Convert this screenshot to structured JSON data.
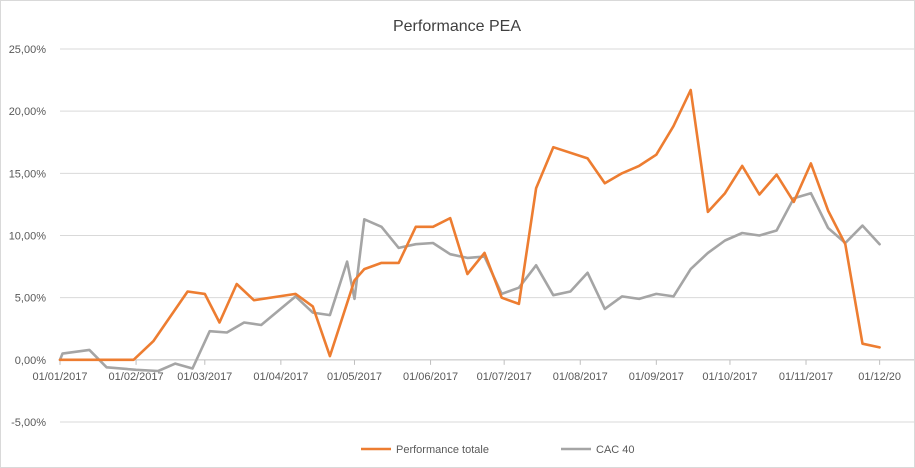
{
  "chart_data": {
    "type": "line",
    "title": "Performance PEA",
    "y_ticks": [
      "25,00%",
      "20,00%",
      "15,00%",
      "10,00%",
      "5,00%",
      "0,00%",
      "-5,00%"
    ],
    "y_tick_values": [
      25,
      20,
      15,
      10,
      5,
      0,
      -5
    ],
    "ylim": [
      -5,
      25
    ],
    "x_tick_labels": [
      "01/01/2017",
      "01/02/2017",
      "01/03/2017",
      "01/04/2017",
      "01/05/2017",
      "01/06/2017",
      "01/07/2017",
      "01/08/2017",
      "01/09/2017",
      "01/10/2017",
      "01/11/2017",
      "01/12/20"
    ],
    "x_tick_dates": [
      "2017-01-01",
      "2017-02-01",
      "2017-03-01",
      "2017-04-01",
      "2017-05-01",
      "2017-06-01",
      "2017-07-01",
      "2017-08-01",
      "2017-09-01",
      "2017-10-01",
      "2017-11-01",
      "2017-12-01"
    ],
    "xlim": [
      "2017-01-01",
      "2017-12-15"
    ],
    "grid": "horizontal",
    "legend_position": "bottom",
    "series": [
      {
        "name": "Performance totale",
        "color": "#ed7d31",
        "points": [
          [
            "2017-01-01",
            0.0
          ],
          [
            "2017-01-31",
            0.0
          ],
          [
            "2017-02-08",
            1.5
          ],
          [
            "2017-02-22",
            5.5
          ],
          [
            "2017-03-01",
            5.3
          ],
          [
            "2017-03-07",
            3.0
          ],
          [
            "2017-03-14",
            6.1
          ],
          [
            "2017-03-21",
            4.8
          ],
          [
            "2017-04-07",
            5.3
          ],
          [
            "2017-04-14",
            4.3
          ],
          [
            "2017-04-21",
            0.3
          ],
          [
            "2017-05-01",
            6.4
          ],
          [
            "2017-05-05",
            7.3
          ],
          [
            "2017-05-12",
            7.8
          ],
          [
            "2017-05-19",
            7.8
          ],
          [
            "2017-05-26",
            10.7
          ],
          [
            "2017-06-02",
            10.7
          ],
          [
            "2017-06-09",
            11.4
          ],
          [
            "2017-06-16",
            6.9
          ],
          [
            "2017-06-23",
            8.6
          ],
          [
            "2017-06-30",
            5.0
          ],
          [
            "2017-07-07",
            4.5
          ],
          [
            "2017-07-14",
            13.8
          ],
          [
            "2017-07-21",
            17.1
          ],
          [
            "2017-08-04",
            16.2
          ],
          [
            "2017-08-11",
            14.2
          ],
          [
            "2017-08-18",
            15.0
          ],
          [
            "2017-08-25",
            15.6
          ],
          [
            "2017-09-01",
            16.5
          ],
          [
            "2017-09-08",
            18.8
          ],
          [
            "2017-09-15",
            21.7
          ],
          [
            "2017-09-22",
            11.9
          ],
          [
            "2017-09-29",
            13.4
          ],
          [
            "2017-10-06",
            15.6
          ],
          [
            "2017-10-13",
            13.3
          ],
          [
            "2017-10-20",
            14.9
          ],
          [
            "2017-10-27",
            12.7
          ],
          [
            "2017-11-03",
            15.8
          ],
          [
            "2017-11-10",
            12.0
          ],
          [
            "2017-11-17",
            9.3
          ],
          [
            "2017-11-24",
            1.3
          ],
          [
            "2017-12-01",
            1.0
          ]
        ]
      },
      {
        "name": "CAC 40",
        "color": "#a5a5a5",
        "points": [
          [
            "2017-01-01",
            0.0
          ],
          [
            "2017-01-02",
            0.5
          ],
          [
            "2017-01-13",
            0.8
          ],
          [
            "2017-01-20",
            -0.6
          ],
          [
            "2017-02-01",
            -0.8
          ],
          [
            "2017-02-10",
            -0.9
          ],
          [
            "2017-02-17",
            -0.3
          ],
          [
            "2017-02-24",
            -0.7
          ],
          [
            "2017-03-03",
            2.3
          ],
          [
            "2017-03-10",
            2.2
          ],
          [
            "2017-03-17",
            3.0
          ],
          [
            "2017-03-24",
            2.8
          ],
          [
            "2017-04-07",
            5.1
          ],
          [
            "2017-04-14",
            3.8
          ],
          [
            "2017-04-21",
            3.6
          ],
          [
            "2017-04-28",
            7.9
          ],
          [
            "2017-05-01",
            4.9
          ],
          [
            "2017-05-05",
            11.3
          ],
          [
            "2017-05-12",
            10.7
          ],
          [
            "2017-05-19",
            9.0
          ],
          [
            "2017-05-26",
            9.3
          ],
          [
            "2017-06-02",
            9.4
          ],
          [
            "2017-06-09",
            8.5
          ],
          [
            "2017-06-16",
            8.2
          ],
          [
            "2017-06-23",
            8.3
          ],
          [
            "2017-06-30",
            5.3
          ],
          [
            "2017-07-07",
            5.8
          ],
          [
            "2017-07-14",
            7.6
          ],
          [
            "2017-07-21",
            5.2
          ],
          [
            "2017-07-28",
            5.5
          ],
          [
            "2017-08-04",
            7.0
          ],
          [
            "2017-08-11",
            4.1
          ],
          [
            "2017-08-18",
            5.1
          ],
          [
            "2017-08-25",
            4.9
          ],
          [
            "2017-09-01",
            5.3
          ],
          [
            "2017-09-08",
            5.1
          ],
          [
            "2017-09-15",
            7.3
          ],
          [
            "2017-09-22",
            8.6
          ],
          [
            "2017-09-29",
            9.6
          ],
          [
            "2017-10-06",
            10.2
          ],
          [
            "2017-10-13",
            10.0
          ],
          [
            "2017-10-20",
            10.4
          ],
          [
            "2017-10-27",
            13.0
          ],
          [
            "2017-11-03",
            13.4
          ],
          [
            "2017-11-10",
            10.6
          ],
          [
            "2017-11-17",
            9.4
          ],
          [
            "2017-11-24",
            10.8
          ],
          [
            "2017-12-01",
            9.3
          ]
        ]
      }
    ]
  }
}
